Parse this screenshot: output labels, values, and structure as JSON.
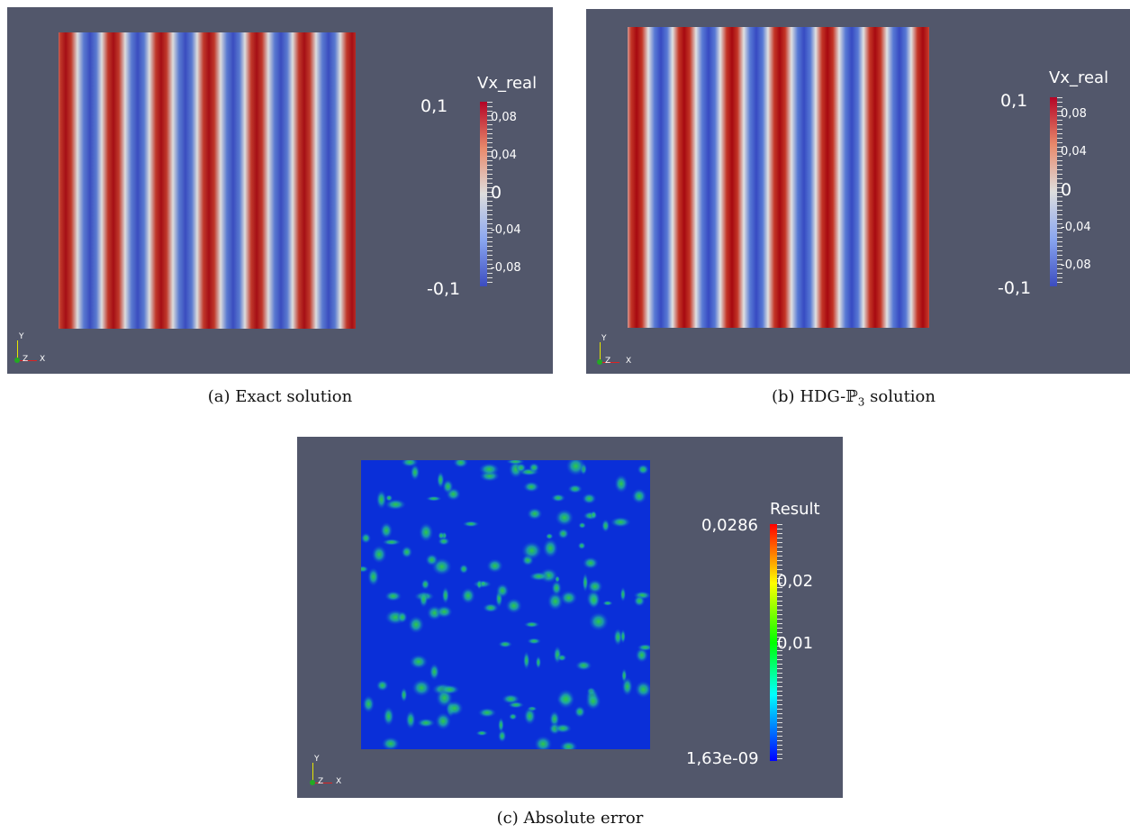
{
  "panels": [
    {
      "caption": {
        "label": "(a)",
        "text": "Exact solution"
      },
      "legend": {
        "title": "Vx_real",
        "labels": [
          "0,1",
          "0,08",
          "0,04",
          "0",
          "-0,04",
          "-0,08",
          "-0,1"
        ]
      },
      "axes": [
        "Y",
        "Z",
        "X"
      ]
    },
    {
      "caption": {
        "label": "(b)",
        "text": "HDG-ℙ",
        "subscript": "3",
        "text_after": " solution"
      },
      "legend": {
        "title": "Vx_real",
        "labels": [
          "0,1",
          "0,08",
          "0,04",
          "0",
          "-0,04",
          "-0,08",
          "-0,1"
        ]
      },
      "axes": [
        "Y",
        "Z",
        "X"
      ]
    },
    {
      "caption": {
        "label": "(c)",
        "text": "Absolute error"
      },
      "legend": {
        "title": "Result",
        "labels": [
          "0,0286",
          "0,02",
          "0,01",
          "1,63e-09"
        ]
      },
      "axes": [
        "Y",
        "Z",
        "X"
      ]
    }
  ]
}
